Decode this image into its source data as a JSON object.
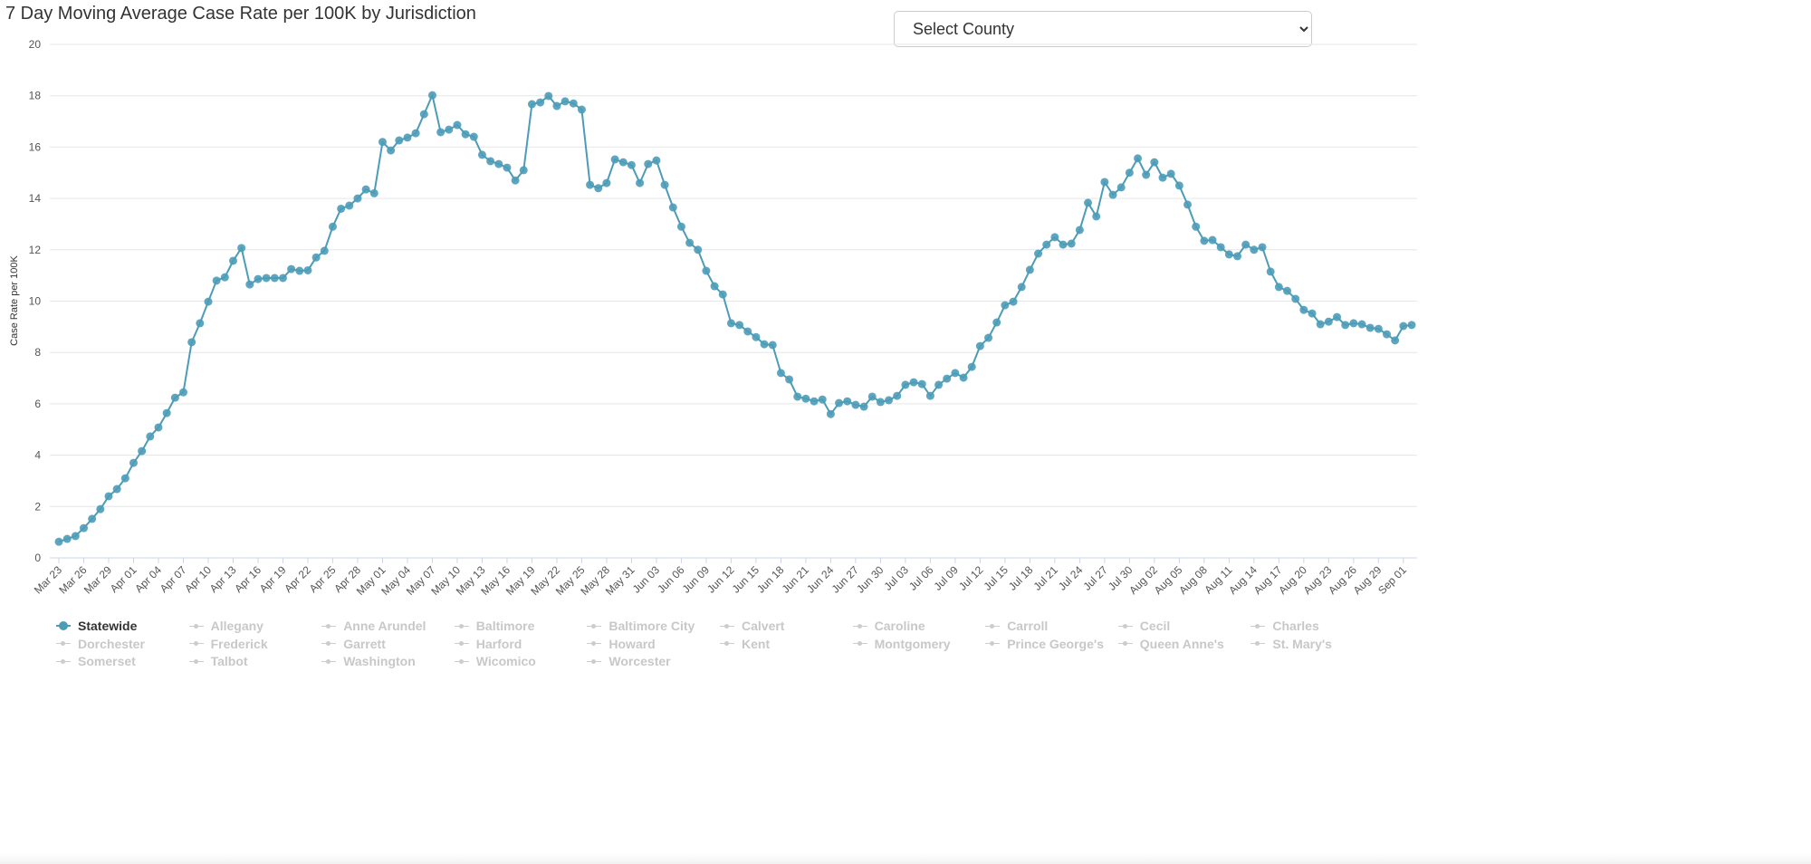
{
  "title": "7 Day Moving Average Case Rate per 100K by Jurisdiction",
  "county_select": {
    "selected": "Select County"
  },
  "colors": {
    "series": "#4c9cb8",
    "grid": "#e6e6e6",
    "inactive": "#cccccc"
  },
  "chart_data": {
    "type": "line",
    "title": "7 Day Moving Average Case Rate per 100K by Jurisdiction",
    "xlabel": "",
    "ylabel": "Case Rate per 100K",
    "ylim": [
      0,
      20
    ],
    "yticks": [
      0,
      2,
      4,
      6,
      8,
      10,
      12,
      14,
      16,
      18,
      20
    ],
    "grid": true,
    "legend_position": "bottom",
    "x": [
      "Mar 23",
      "Mar 24",
      "Mar 25",
      "Mar 26",
      "Mar 27",
      "Mar 28",
      "Mar 29",
      "Mar 30",
      "Mar 31",
      "Apr 01",
      "Apr 02",
      "Apr 03",
      "Apr 04",
      "Apr 05",
      "Apr 06",
      "Apr 07",
      "Apr 08",
      "Apr 09",
      "Apr 10",
      "Apr 11",
      "Apr 12",
      "Apr 13",
      "Apr 14",
      "Apr 15",
      "Apr 16",
      "Apr 17",
      "Apr 18",
      "Apr 19",
      "Apr 20",
      "Apr 21",
      "Apr 22",
      "Apr 23",
      "Apr 24",
      "Apr 25",
      "Apr 26",
      "Apr 27",
      "Apr 28",
      "Apr 29",
      "Apr 30",
      "May 01",
      "May 02",
      "May 03",
      "May 04",
      "May 05",
      "May 06",
      "May 07",
      "May 08",
      "May 09",
      "May 10",
      "May 11",
      "May 12",
      "May 13",
      "May 14",
      "May 15",
      "May 16",
      "May 17",
      "May 18",
      "May 19",
      "May 20",
      "May 21",
      "May 22",
      "May 23",
      "May 24",
      "May 25",
      "May 26",
      "May 27",
      "May 28",
      "May 29",
      "May 30",
      "May 31",
      "Jun 01",
      "Jun 02",
      "Jun 03",
      "Jun 04",
      "Jun 05",
      "Jun 06",
      "Jun 07",
      "Jun 08",
      "Jun 09",
      "Jun 10",
      "Jun 11",
      "Jun 12",
      "Jun 13",
      "Jun 14",
      "Jun 15",
      "Jun 16",
      "Jun 17",
      "Jun 18",
      "Jun 19",
      "Jun 20",
      "Jun 21",
      "Jun 22",
      "Jun 23",
      "Jun 24",
      "Jun 25",
      "Jun 26",
      "Jun 27",
      "Jun 28",
      "Jun 29",
      "Jun 30",
      "Jul 01",
      "Jul 02",
      "Jul 03",
      "Jul 04",
      "Jul 05",
      "Jul 06",
      "Jul 07",
      "Jul 08",
      "Jul 09",
      "Jul 10",
      "Jul 11",
      "Jul 12",
      "Jul 13",
      "Jul 14",
      "Jul 15",
      "Jul 16",
      "Jul 17",
      "Jul 18",
      "Jul 19",
      "Jul 20",
      "Jul 21",
      "Jul 22",
      "Jul 23",
      "Jul 24",
      "Jul 25",
      "Jul 26",
      "Jul 27",
      "Jul 28",
      "Jul 29",
      "Jul 30",
      "Jul 31",
      "Aug 01",
      "Aug 02",
      "Aug 03",
      "Aug 04",
      "Aug 05",
      "Aug 06",
      "Aug 07",
      "Aug 08",
      "Aug 09",
      "Aug 10",
      "Aug 11",
      "Aug 12",
      "Aug 13",
      "Aug 14",
      "Aug 15",
      "Aug 16",
      "Aug 17",
      "Aug 18",
      "Aug 19",
      "Aug 20",
      "Aug 21",
      "Aug 22",
      "Aug 23",
      "Aug 24",
      "Aug 25",
      "Aug 26",
      "Aug 27",
      "Aug 28",
      "Aug 29",
      "Aug 30",
      "Aug 31",
      "Sep 01",
      "Sep 02"
    ],
    "xticks": [
      "Mar 23",
      "Mar 26",
      "Mar 29",
      "Apr 01",
      "Apr 04",
      "Apr 07",
      "Apr 10",
      "Apr 13",
      "Apr 16",
      "Apr 19",
      "Apr 22",
      "Apr 25",
      "Apr 28",
      "May 01",
      "May 04",
      "May 07",
      "May 10",
      "May 13",
      "May 16",
      "May 19",
      "May 22",
      "May 25",
      "May 28",
      "May 31",
      "Jun 03",
      "Jun 06",
      "Jun 09",
      "Jun 12",
      "Jun 15",
      "Jun 18",
      "Jun 21",
      "Jun 24",
      "Jun 27",
      "Jun 30",
      "Jul 03",
      "Jul 06",
      "Jul 09",
      "Jul 12",
      "Jul 15",
      "Jul 18",
      "Jul 21",
      "Jul 24",
      "Jul 27",
      "Jul 30",
      "Aug 02",
      "Aug 05",
      "Aug 08",
      "Aug 11",
      "Aug 14",
      "Aug 17",
      "Aug 20",
      "Aug 23",
      "Aug 26",
      "Aug 29",
      "Sep 01"
    ],
    "series": [
      {
        "name": "Statewide",
        "values": [
          0.63,
          0.74,
          0.85,
          1.16,
          1.52,
          1.9,
          2.4,
          2.68,
          3.1,
          3.7,
          4.16,
          4.73,
          5.08,
          5.64,
          6.24,
          6.45,
          8.4,
          9.14,
          9.98,
          10.8,
          10.93,
          11.57,
          12.07,
          10.65,
          10.86,
          10.9,
          10.9,
          10.9,
          11.25,
          11.18,
          11.2,
          11.7,
          11.96,
          12.9,
          13.6,
          13.72,
          14.0,
          14.35,
          14.2,
          16.2,
          15.87,
          16.26,
          16.37,
          16.54,
          17.28,
          18.02,
          16.58,
          16.68,
          16.86,
          16.5,
          16.4,
          15.7,
          15.45,
          15.34,
          15.2,
          14.7,
          15.1,
          17.67,
          17.74,
          17.99,
          17.6,
          17.78,
          17.7,
          17.46,
          14.53,
          14.4,
          14.6,
          15.52,
          15.41,
          15.3,
          14.6,
          15.34,
          15.48,
          14.53,
          13.65,
          12.9,
          12.27,
          12.0,
          11.18,
          10.58,
          10.26,
          9.14,
          9.07,
          8.82,
          8.6,
          8.32,
          8.29,
          7.2,
          6.95,
          6.28,
          6.2,
          6.1,
          6.17,
          5.6,
          6.03,
          6.1,
          5.96,
          5.89,
          6.28,
          6.07,
          6.14,
          6.31,
          6.74,
          6.84,
          6.77,
          6.31,
          6.74,
          6.98,
          7.2,
          7.02,
          7.44,
          8.25,
          8.57,
          9.17,
          9.84,
          9.98,
          10.55,
          11.22,
          11.85,
          12.2,
          12.49,
          12.2,
          12.24,
          12.77,
          13.83,
          13.3,
          14.64,
          14.14,
          14.43,
          15.0,
          15.56,
          14.92,
          15.41,
          14.81,
          14.96,
          14.5,
          13.76,
          12.9,
          12.35,
          12.38,
          12.1,
          11.82,
          11.75,
          12.2,
          12.0,
          12.1,
          11.15,
          10.55,
          10.4,
          10.09,
          9.66,
          9.52,
          9.1,
          9.2,
          9.38,
          9.07,
          9.14,
          9.1,
          8.96,
          8.92,
          8.71,
          8.47,
          9.03,
          9.07
        ]
      }
    ]
  },
  "legend": [
    {
      "label": "Statewide",
      "active": true
    },
    {
      "label": "Allegany"
    },
    {
      "label": "Anne Arundel"
    },
    {
      "label": "Baltimore"
    },
    {
      "label": "Baltimore City"
    },
    {
      "label": "Calvert"
    },
    {
      "label": "Caroline"
    },
    {
      "label": "Carroll"
    },
    {
      "label": "Cecil"
    },
    {
      "label": "Charles"
    },
    {
      "label": "Dorchester"
    },
    {
      "label": "Frederick"
    },
    {
      "label": "Garrett"
    },
    {
      "label": "Harford"
    },
    {
      "label": "Howard"
    },
    {
      "label": "Kent"
    },
    {
      "label": "Montgomery"
    },
    {
      "label": "Prince George's"
    },
    {
      "label": "Queen Anne's"
    },
    {
      "label": "St. Mary's"
    },
    {
      "label": "Somerset"
    },
    {
      "label": "Talbot"
    },
    {
      "label": "Washington"
    },
    {
      "label": "Wicomico"
    },
    {
      "label": "Worcester"
    }
  ]
}
